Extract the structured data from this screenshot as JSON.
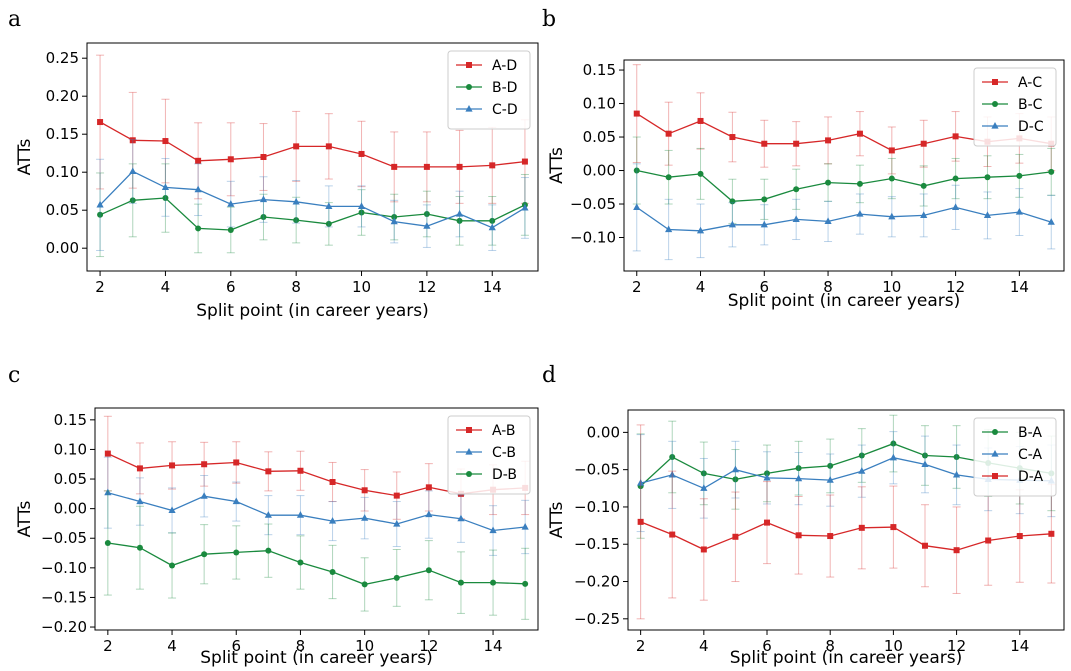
{
  "chart_data": [
    {
      "panel": "a",
      "type": "line",
      "xlabel": "Split point (in career years)",
      "ylabel": "ATTs",
      "xlim": [
        1.6,
        15.4
      ],
      "ylim": [
        -0.03,
        0.27
      ],
      "xticks": [
        2,
        4,
        6,
        8,
        10,
        12,
        14
      ],
      "yticks": [
        "0.00",
        "0.05",
        "0.10",
        "0.15",
        "0.20",
        "0.25"
      ],
      "legend_position": "top-right",
      "x": [
        2,
        3,
        4,
        5,
        6,
        7,
        8,
        9,
        10,
        11,
        12,
        13,
        14,
        15
      ],
      "series": [
        {
          "name": "A-D",
          "color": "#d62728",
          "marker": "square",
          "values": [
            0.166,
            0.142,
            0.141,
            0.115,
            0.117,
            0.12,
            0.134,
            0.134,
            0.124,
            0.107,
            0.107,
            0.107,
            0.109,
            0.114
          ],
          "errors": [
            0.088,
            0.063,
            0.055,
            0.05,
            0.048,
            0.044,
            0.046,
            0.043,
            0.043,
            0.046,
            0.046,
            0.048,
            0.05,
            0.055
          ]
        },
        {
          "name": "B-D",
          "color": "#1a8a3e",
          "marker": "circle",
          "values": [
            0.044,
            0.063,
            0.066,
            0.026,
            0.024,
            0.041,
            0.037,
            0.032,
            0.047,
            0.041,
            0.045,
            0.036,
            0.036,
            0.057
          ],
          "errors": [
            0.055,
            0.048,
            0.045,
            0.032,
            0.03,
            0.03,
            0.03,
            0.028,
            0.03,
            0.03,
            0.03,
            0.032,
            0.032,
            0.04
          ]
        },
        {
          "name": "C-D",
          "color": "#3a7fbf",
          "marker": "triangle",
          "values": [
            0.057,
            0.101,
            0.08,
            0.077,
            0.058,
            0.064,
            0.061,
            0.055,
            0.055,
            0.035,
            0.029,
            0.045,
            0.027,
            0.053
          ],
          "errors": [
            0.06,
            0.042,
            0.038,
            0.034,
            0.03,
            0.03,
            0.028,
            0.027,
            0.027,
            0.028,
            0.028,
            0.03,
            0.03,
            0.04
          ]
        }
      ]
    },
    {
      "panel": "b",
      "type": "line",
      "xlabel": "Split point (in career years)",
      "ylabel": "ATTs",
      "xlim": [
        1.6,
        15.4
      ],
      "ylim": [
        -0.15,
        0.165
      ],
      "xticks": [
        2,
        4,
        6,
        8,
        10,
        12,
        14
      ],
      "yticks": [
        "−0.10",
        "−0.05",
        "0.00",
        "0.05",
        "0.10",
        "0.15"
      ],
      "legend_position": "top-right",
      "x": [
        2,
        3,
        4,
        5,
        6,
        7,
        8,
        9,
        10,
        11,
        12,
        13,
        14,
        15
      ],
      "series": [
        {
          "name": "A-C",
          "color": "#d62728",
          "marker": "square",
          "values": [
            0.085,
            0.055,
            0.074,
            0.05,
            0.04,
            0.04,
            0.045,
            0.055,
            0.03,
            0.04,
            0.051,
            0.043,
            0.048,
            0.04
          ],
          "errors": [
            0.073,
            0.047,
            0.042,
            0.037,
            0.035,
            0.033,
            0.035,
            0.033,
            0.035,
            0.035,
            0.037,
            0.037,
            0.037,
            0.04
          ]
        },
        {
          "name": "B-C",
          "color": "#1a8a3e",
          "marker": "circle",
          "values": [
            0.0,
            -0.01,
            -0.005,
            -0.046,
            -0.043,
            -0.028,
            -0.018,
            -0.02,
            -0.012,
            -0.023,
            -0.012,
            -0.01,
            -0.008,
            -0.002
          ],
          "errors": [
            0.05,
            0.04,
            0.038,
            0.033,
            0.03,
            0.03,
            0.028,
            0.028,
            0.03,
            0.03,
            0.03,
            0.032,
            0.032,
            0.035
          ]
        },
        {
          "name": "D-C",
          "color": "#3a7fbf",
          "marker": "triangle",
          "values": [
            -0.055,
            -0.088,
            -0.09,
            -0.081,
            -0.081,
            -0.073,
            -0.076,
            -0.065,
            -0.069,
            -0.067,
            -0.055,
            -0.067,
            -0.062,
            -0.077
          ],
          "errors": [
            0.065,
            0.045,
            0.04,
            0.033,
            0.03,
            0.03,
            0.03,
            0.03,
            0.03,
            0.032,
            0.033,
            0.035,
            0.035,
            0.04
          ]
        }
      ]
    },
    {
      "panel": "c",
      "type": "line",
      "xlabel": "Split point (in career years)",
      "ylabel": "ATTs",
      "xlim": [
        1.6,
        15.4
      ],
      "ylim": [
        -0.205,
        0.17
      ],
      "xticks": [
        2,
        4,
        6,
        8,
        10,
        12,
        14
      ],
      "yticks": [
        "−0.20",
        "−0.15",
        "−0.10",
        "−0.05",
        "0.00",
        "0.05",
        "0.10",
        "0.15"
      ],
      "legend_position": "top-right",
      "x": [
        2,
        3,
        4,
        5,
        6,
        7,
        8,
        9,
        10,
        11,
        12,
        13,
        14,
        15
      ],
      "series": [
        {
          "name": "A-B",
          "color": "#d62728",
          "marker": "square",
          "values": [
            0.093,
            0.068,
            0.073,
            0.075,
            0.078,
            0.063,
            0.064,
            0.045,
            0.031,
            0.022,
            0.036,
            0.025,
            0.032,
            0.035
          ],
          "errors": [
            0.063,
            0.043,
            0.04,
            0.037,
            0.035,
            0.033,
            0.033,
            0.033,
            0.035,
            0.04,
            0.04,
            0.042,
            0.042,
            0.045
          ]
        },
        {
          "name": "C-B",
          "color": "#3a7fbf",
          "marker": "triangle",
          "values": [
            0.027,
            0.012,
            -0.003,
            0.021,
            0.012,
            -0.011,
            -0.011,
            -0.021,
            -0.016,
            -0.026,
            -0.01,
            -0.017,
            -0.037,
            -0.031
          ],
          "errors": [
            0.06,
            0.04,
            0.038,
            0.035,
            0.033,
            0.033,
            0.033,
            0.033,
            0.035,
            0.038,
            0.04,
            0.04,
            0.042,
            0.045
          ]
        },
        {
          "name": "D-B",
          "color": "#1a8a3e",
          "marker": "circle",
          "values": [
            -0.058,
            -0.066,
            -0.096,
            -0.077,
            -0.074,
            -0.071,
            -0.091,
            -0.107,
            -0.128,
            -0.117,
            -0.104,
            -0.125,
            -0.125,
            -0.127
          ],
          "errors": [
            0.088,
            0.07,
            0.055,
            0.05,
            0.045,
            0.045,
            0.045,
            0.045,
            0.045,
            0.048,
            0.05,
            0.052,
            0.055,
            0.06
          ]
        }
      ]
    },
    {
      "panel": "d",
      "type": "line",
      "xlabel": "Split point (in career years)",
      "ylabel": "ATTs",
      "xlim": [
        1.6,
        15.4
      ],
      "ylim": [
        -0.265,
        0.03
      ],
      "xticks": [
        2,
        4,
        6,
        8,
        10,
        12,
        14
      ],
      "yticks": [
        "−0.25",
        "−0.20",
        "−0.15",
        "−0.10",
        "−0.05",
        "0.00"
      ],
      "legend_position": "top-right",
      "x": [
        2,
        3,
        4,
        5,
        6,
        7,
        8,
        9,
        10,
        11,
        12,
        13,
        14,
        15
      ],
      "series": [
        {
          "name": "B-A",
          "color": "#1a8a3e",
          "marker": "circle",
          "values": [
            -0.072,
            -0.033,
            -0.055,
            -0.063,
            -0.055,
            -0.048,
            -0.045,
            -0.031,
            -0.015,
            -0.031,
            -0.033,
            -0.041,
            -0.048,
            -0.055
          ],
          "errors": [
            0.07,
            0.048,
            0.042,
            0.04,
            0.038,
            0.036,
            0.036,
            0.036,
            0.038,
            0.04,
            0.042,
            0.045,
            0.048,
            0.05
          ]
        },
        {
          "name": "C-A",
          "color": "#3a7fbf",
          "marker": "triangle",
          "values": [
            -0.068,
            -0.057,
            -0.075,
            -0.05,
            -0.061,
            -0.062,
            -0.064,
            -0.052,
            -0.034,
            -0.043,
            -0.057,
            -0.063,
            -0.064,
            -0.065
          ],
          "errors": [
            0.065,
            0.045,
            0.04,
            0.038,
            0.035,
            0.035,
            0.035,
            0.035,
            0.035,
            0.038,
            0.04,
            0.042,
            0.045,
            0.048
          ]
        },
        {
          "name": "D-A",
          "color": "#d62728",
          "marker": "square",
          "values": [
            -0.12,
            -0.137,
            -0.157,
            -0.14,
            -0.121,
            -0.138,
            -0.139,
            -0.128,
            -0.127,
            -0.152,
            -0.158,
            -0.145,
            -0.139,
            -0.136
          ],
          "errors": [
            0.13,
            0.085,
            0.068,
            0.06,
            0.055,
            0.052,
            0.055,
            0.055,
            0.055,
            0.055,
            0.058,
            0.06,
            0.062,
            0.066
          ]
        }
      ]
    }
  ]
}
